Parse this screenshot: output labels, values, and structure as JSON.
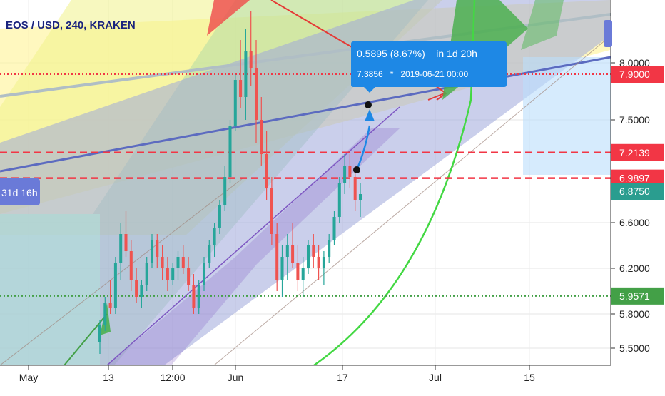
{
  "chart_data": {
    "type": "candlestick",
    "title": "EOS / USD, 240, KRAKEN",
    "x_ticks": [
      "May",
      "13",
      "12:00",
      "Jun",
      "17",
      "Jul",
      "15"
    ],
    "y_ticks": [
      "5.5000",
      "5.8000",
      "6.2000",
      "6.6000",
      "7.5000",
      "8.0000"
    ],
    "ylim": [
      5.35,
      8.55
    ],
    "price_labels": [
      {
        "value": "7.9000",
        "bg": "#f23645"
      },
      {
        "value": "7.2139",
        "bg": "#f23645"
      },
      {
        "value": "6.9897",
        "bg": "#f23645"
      },
      {
        "value": "6.8750",
        "bg": "#2a9d8f"
      },
      {
        "value": "5.9571",
        "bg": "#43a047"
      }
    ],
    "horizontal_lines": [
      {
        "value": 7.9,
        "style": "dotted",
        "color": "#f23645"
      },
      {
        "value": 7.2139,
        "style": "dashed",
        "color": "#f23645"
      },
      {
        "value": 6.9897,
        "style": "dashed",
        "color": "#f23645"
      },
      {
        "value": 5.9571,
        "style": "dotted",
        "color": "#43a047"
      }
    ],
    "candles_approx": [
      [
        5.55,
        5.75,
        5.45,
        5.7
      ],
      [
        5.7,
        5.95,
        5.65,
        5.9
      ],
      [
        5.9,
        6.1,
        5.8,
        5.85
      ],
      [
        5.85,
        6.3,
        5.8,
        6.25
      ],
      [
        6.25,
        6.6,
        6.1,
        6.5
      ],
      [
        6.5,
        6.7,
        6.3,
        6.35
      ],
      [
        6.35,
        6.45,
        6.0,
        6.1
      ],
      [
        6.1,
        6.2,
        5.9,
        5.95
      ],
      [
        5.95,
        6.1,
        5.85,
        6.05
      ],
      [
        6.05,
        6.3,
        6.0,
        6.25
      ],
      [
        6.25,
        6.5,
        6.2,
        6.45
      ],
      [
        6.45,
        6.5,
        6.2,
        6.3
      ],
      [
        6.3,
        6.4,
        6.1,
        6.2
      ],
      [
        6.2,
        6.3,
        6.0,
        6.1
      ],
      [
        6.1,
        6.25,
        6.05,
        6.2
      ],
      [
        6.2,
        6.35,
        6.1,
        6.3
      ],
      [
        6.3,
        6.4,
        6.15,
        6.2
      ],
      [
        6.2,
        6.3,
        6.0,
        6.05
      ],
      [
        6.05,
        6.15,
        5.8,
        5.85
      ],
      [
        5.85,
        6.1,
        5.8,
        6.05
      ],
      [
        6.05,
        6.3,
        6.0,
        6.25
      ],
      [
        6.25,
        6.45,
        6.2,
        6.4
      ],
      [
        6.4,
        6.6,
        6.3,
        6.55
      ],
      [
        6.55,
        6.8,
        6.5,
        6.75
      ],
      [
        6.75,
        7.1,
        6.7,
        7.0
      ],
      [
        7.0,
        7.5,
        6.95,
        7.45
      ],
      [
        7.45,
        7.9,
        7.4,
        7.85
      ],
      [
        7.85,
        8.2,
        7.6,
        7.7
      ],
      [
        7.7,
        8.3,
        7.5,
        8.1
      ],
      [
        8.1,
        8.45,
        7.8,
        7.95
      ],
      [
        7.95,
        8.2,
        7.3,
        7.5
      ],
      [
        7.5,
        7.7,
        7.1,
        7.2
      ],
      [
        7.2,
        7.4,
        6.8,
        6.9
      ],
      [
        6.9,
        7.0,
        6.4,
        6.5
      ],
      [
        6.5,
        6.6,
        6.0,
        6.1
      ],
      [
        6.1,
        6.4,
        5.95,
        6.3
      ],
      [
        6.3,
        6.5,
        6.1,
        6.4
      ],
      [
        6.4,
        6.6,
        6.2,
        6.25
      ],
      [
        6.25,
        6.4,
        6.0,
        6.1
      ],
      [
        6.1,
        6.3,
        5.95,
        6.2
      ],
      [
        6.2,
        6.45,
        6.15,
        6.4
      ],
      [
        6.4,
        6.5,
        6.2,
        6.3
      ],
      [
        6.3,
        6.4,
        6.1,
        6.2
      ],
      [
        6.2,
        6.35,
        6.05,
        6.3
      ],
      [
        6.3,
        6.5,
        6.25,
        6.45
      ],
      [
        6.45,
        6.7,
        6.4,
        6.65
      ],
      [
        6.65,
        7.0,
        6.6,
        6.95
      ],
      [
        6.95,
        7.2,
        6.85,
        7.1
      ],
      [
        7.1,
        7.2,
        6.9,
        7.0
      ],
      [
        7.0,
        7.1,
        6.7,
        6.8
      ],
      [
        6.8,
        6.95,
        6.65,
        6.85
      ]
    ],
    "annotation": {
      "line1": "0.5895 (8.67%)    in 1d 20h",
      "line2": "7.3856   *   2019-06-21 00:00"
    },
    "left_badge": "31d 16h",
    "grid": true
  }
}
